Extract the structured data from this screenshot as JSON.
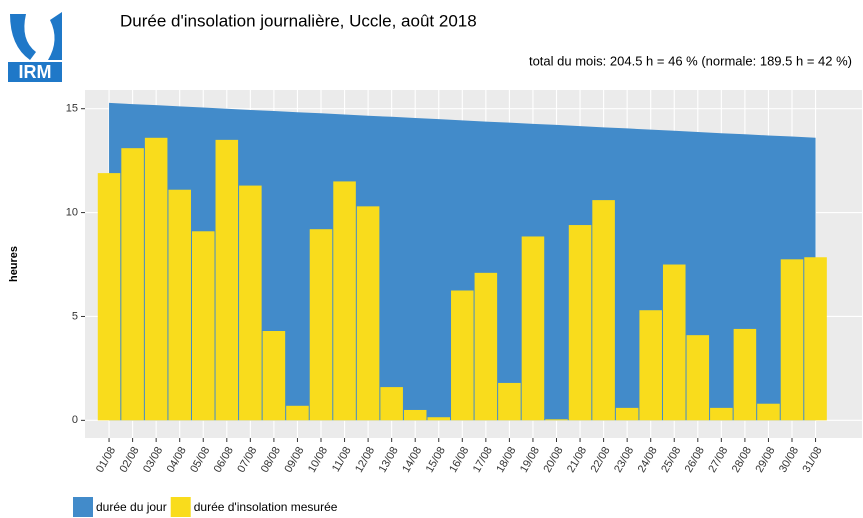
{
  "logo": "IRM",
  "chart_data": {
    "type": "bar",
    "title": "Durée d'insolation journalière, Uccle, août 2018",
    "subtitle": "total du mois: 204.5 h = 46 % (normale: 189.5 h = 42 %)",
    "y_label": "heures",
    "categories": [
      "01/08",
      "02/08",
      "03/08",
      "04/08",
      "05/08",
      "06/08",
      "07/08",
      "08/08",
      "09/08",
      "10/08",
      "11/08",
      "12/08",
      "13/08",
      "14/08",
      "15/08",
      "16/08",
      "17/08",
      "18/08",
      "19/08",
      "20/08",
      "21/08",
      "22/08",
      "23/08",
      "24/08",
      "25/08",
      "26/08",
      "27/08",
      "28/08",
      "29/08",
      "30/08",
      "31/08"
    ],
    "series": [
      {
        "name": "durée du jour",
        "type": "area",
        "color": "#428bca",
        "values": [
          15.28,
          15.22,
          15.17,
          15.11,
          15.06,
          15.0,
          14.94,
          14.89,
          14.83,
          14.78,
          14.72,
          14.66,
          14.61,
          14.55,
          14.5,
          14.44,
          14.38,
          14.33,
          14.27,
          14.22,
          14.16,
          14.1,
          14.05,
          13.99,
          13.94,
          13.88,
          13.82,
          13.77,
          13.71,
          13.66,
          13.6
        ]
      },
      {
        "name": "durée d'insolation mesurée",
        "type": "bar",
        "color": "#f9dc1c",
        "values": [
          11.9,
          13.1,
          13.6,
          11.1,
          9.1,
          13.5,
          11.3,
          4.3,
          0.7,
          9.2,
          11.5,
          10.3,
          1.6,
          0.5,
          0.15,
          6.25,
          7.1,
          1.8,
          8.85,
          0.05,
          9.4,
          10.6,
          0.6,
          5.3,
          7.5,
          4.1,
          0.6,
          4.4,
          0.8,
          7.75,
          7.85
        ]
      }
    ],
    "ylim": [
      -0.85,
      15.9
    ],
    "yticks": [
      0,
      5,
      10,
      15
    ],
    "grid": true,
    "legend_position": "bottom"
  }
}
